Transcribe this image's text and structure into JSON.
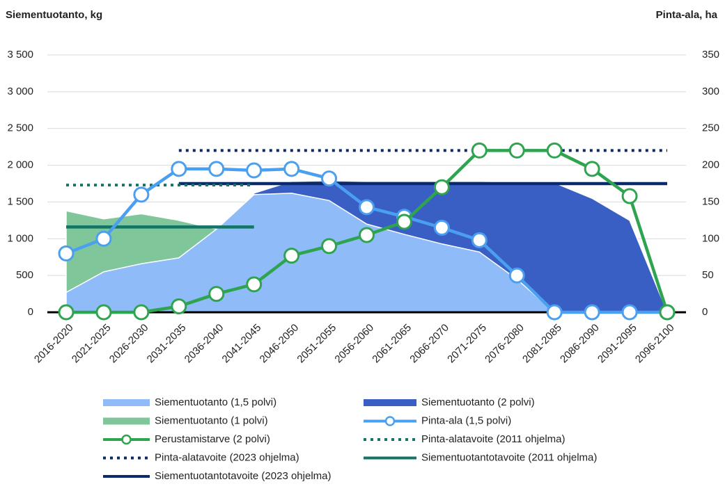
{
  "chart_data": {
    "type": "area-line",
    "y_label": "Siementuotanto, kg",
    "y2_label": "Pinta-ala, ha",
    "categories": [
      "2016-2020",
      "2021-2025",
      "2026-2030",
      "2031-2035",
      "2036-2040",
      "2041-2045",
      "2046-2050",
      "2051-2055",
      "2056-2060",
      "2061-2065",
      "2066-2070",
      "2071-2075",
      "2076-2080",
      "2081-2085",
      "2086-2090",
      "2091-2095",
      "2096-2100"
    ],
    "ylim": [
      0,
      3500
    ],
    "yticks": [
      0,
      500,
      {
        "value": 1000,
        "label": "1 000"
      },
      {
        "value": 1500,
        "label": "1 500"
      },
      {
        "value": 2000,
        "label": "2 000"
      },
      {
        "value": 2500,
        "label": "2 500"
      },
      {
        "value": 3000,
        "label": "3 000"
      },
      {
        "value": 3500,
        "label": "3 500"
      }
    ],
    "y2lim": [
      0,
      350
    ],
    "y2ticks": [
      0,
      50,
      100,
      150,
      200,
      250,
      300,
      350
    ],
    "series": [
      {
        "name": "Siementuotanto (1 polvi)",
        "kind": "area",
        "color": "#7fc79a",
        "values": [
          1380,
          1270,
          1340,
          1250,
          1130,
          0,
          0,
          0,
          0,
          0,
          0,
          0,
          0,
          0,
          0,
          0,
          0
        ]
      },
      {
        "name": "Siementuotanto (2 polvi)",
        "kind": "area",
        "color": "#3a5fc4",
        "values": [
          0,
          0,
          0,
          0,
          0,
          1620,
          1780,
          1790,
          1780,
          1780,
          1780,
          1780,
          1770,
          1760,
          1550,
          1250,
          0
        ]
      },
      {
        "name": "Siementuotanto (1,5 polvi)",
        "kind": "area",
        "color": "#8fbcf8",
        "values": [
          270,
          550,
          660,
          740,
          1130,
          1600,
          1620,
          1520,
          1200,
          1060,
          930,
          820,
          450,
          0,
          0,
          0,
          0
        ]
      },
      {
        "name": "Siementuotantotavoite (2011 ohjelma)",
        "kind": "line",
        "color": "#127565",
        "values": [
          1160,
          1160,
          1160,
          1160,
          1160,
          1160,
          null,
          null,
          null,
          null,
          null,
          null,
          null,
          null,
          null,
          null,
          null
        ]
      },
      {
        "name": "Siementuotantotavoite (2023 ohjelma)",
        "kind": "line",
        "color": "#0b2a6b",
        "values": [
          null,
          null,
          null,
          1750,
          1750,
          1750,
          1750,
          1750,
          1750,
          1750,
          1750,
          1750,
          1750,
          1750,
          1750,
          1750,
          1750
        ]
      },
      {
        "name": "Pinta-alatavoite (2011 ohjelma)",
        "kind": "dotted",
        "axis": "y2",
        "color": "#127565",
        "values": [
          173,
          173,
          173,
          173,
          173,
          173,
          null,
          null,
          null,
          null,
          null,
          null,
          null,
          null,
          null,
          null,
          null
        ]
      },
      {
        "name": "Pinta-alatavoite (2023 ohjelma)",
        "kind": "dotted",
        "axis": "y2",
        "color": "#0b2a6b",
        "values": [
          null,
          null,
          null,
          220,
          220,
          220,
          220,
          220,
          220,
          220,
          220,
          220,
          220,
          220,
          220,
          220,
          220
        ]
      },
      {
        "name": "Pinta-ala (1,5 polvi)",
        "kind": "marker",
        "axis": "y2",
        "color": "#4a9ff0",
        "values": [
          80,
          100,
          160,
          195,
          195,
          193,
          195,
          182,
          143,
          130,
          115,
          98,
          50,
          0,
          0,
          0,
          0
        ]
      },
      {
        "name": "Perustamistarve (2 polvi)",
        "kind": "marker",
        "axis": "y2",
        "color": "#2ea44f",
        "values": [
          0,
          0,
          0,
          8,
          25,
          38,
          77,
          90,
          105,
          123,
          170,
          220,
          220,
          220,
          195,
          158,
          0
        ]
      }
    ],
    "legend_order": [
      2,
      1,
      0,
      7,
      8,
      5,
      6,
      3,
      4
    ]
  }
}
